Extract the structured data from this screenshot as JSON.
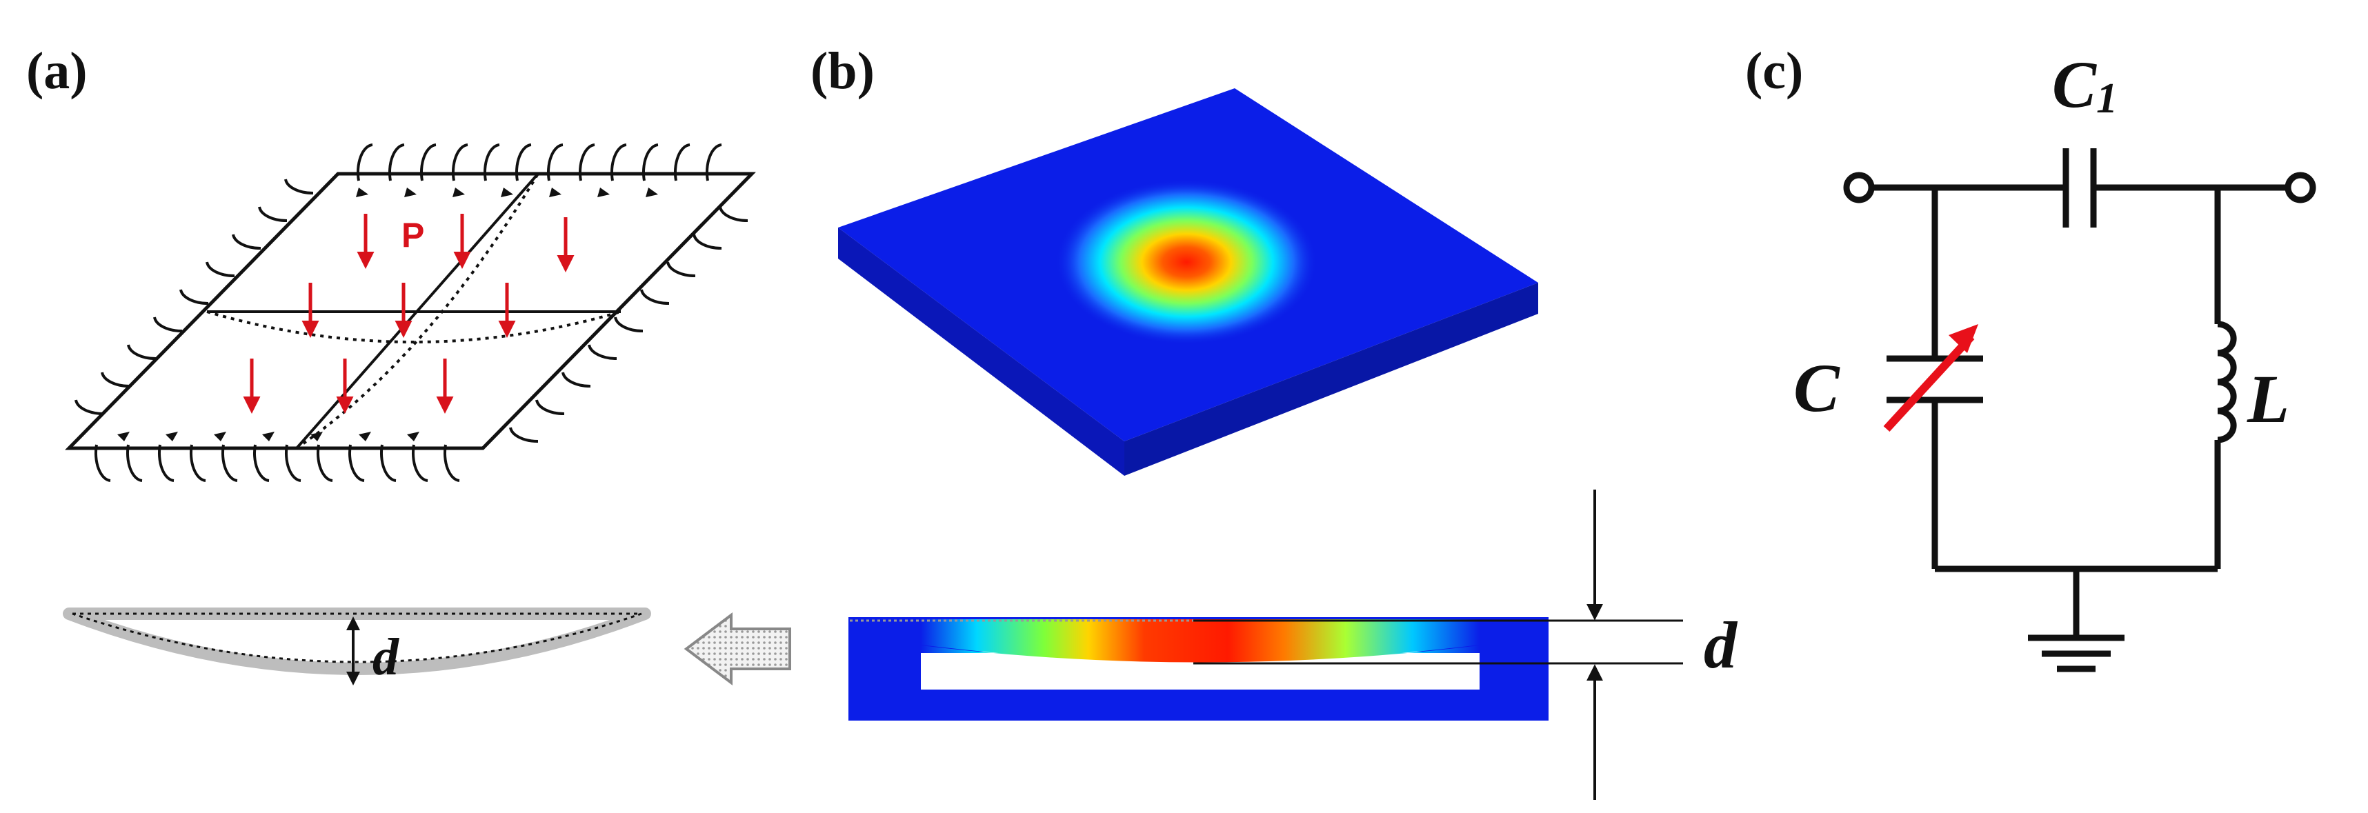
{
  "panels": {
    "a": {
      "label": "(a)",
      "load_label": "P",
      "deflection_label": "d"
    },
    "b": {
      "label": "(b)",
      "deflection_label": "d"
    },
    "c": {
      "label": "(c)",
      "c1_main": "C",
      "c1_sub": "1",
      "c_label": "C",
      "l_label": "L"
    }
  },
  "colors": {
    "load_arrow": "#d8121b",
    "line": "#111111",
    "plate_blue": "#0b1ee8",
    "membrane_gray": "#bdbdbd",
    "variable_arrow": "#e8101a"
  },
  "icons": {
    "moment": "curved-arrow-icon",
    "flow": "hollow-arrow-icon"
  }
}
